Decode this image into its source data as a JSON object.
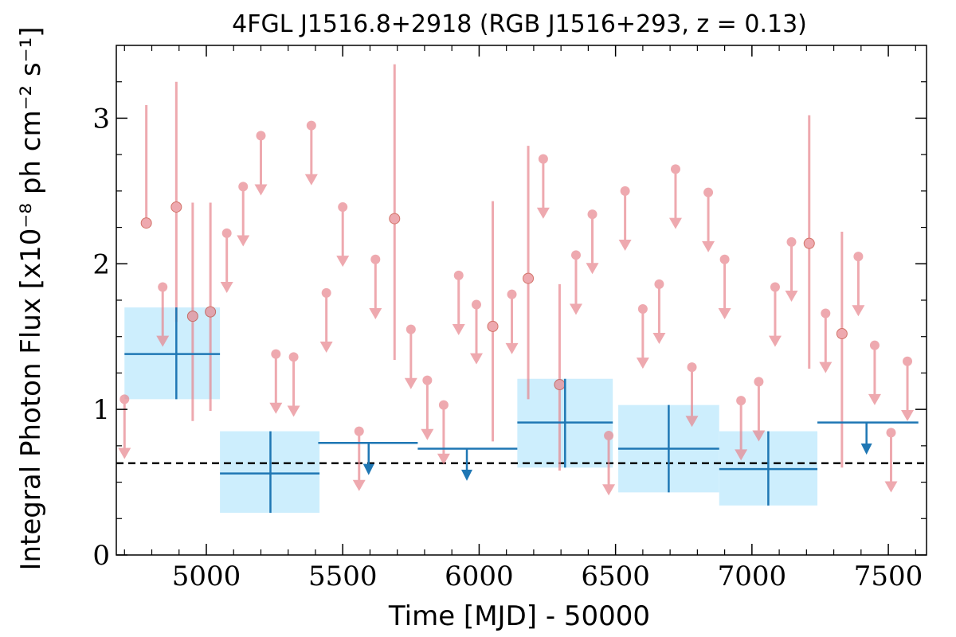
{
  "chart_data": {
    "type": "scatter",
    "title": "4FGL J1516.8+2918 (RGB J1516+293, z = 0.13)",
    "xlabel": "Time [MJD] - 50000",
    "ylabel": "Integral Photon Flux [x10⁻⁸ ph cm⁻² s⁻¹]",
    "xlim": [
      4670,
      7640
    ],
    "ylim": [
      0,
      3.5
    ],
    "x_ticks": [
      5000,
      5500,
      6000,
      6500,
      7000,
      7500
    ],
    "y_ticks": [
      0,
      1,
      2,
      3
    ],
    "x_tick_labels": [
      "5000",
      "5500",
      "6000",
      "6500",
      "7000",
      "7500"
    ],
    "y_tick_labels": [
      "0",
      "1",
      "2",
      "3"
    ],
    "grid": false,
    "legend": "none",
    "reference_line": {
      "y": 0.63,
      "style": "dashed",
      "color": "#000000"
    },
    "colors": {
      "short_bins": "#e8868e",
      "long_bins": "#1f77b4",
      "long_bins_band": "#cdeefd"
    },
    "short_bins_detections": [
      {
        "x": 4780,
        "y": 2.28,
        "yerr_low": 2.28,
        "yerr_high": 3.09
      },
      {
        "x": 4890,
        "y": 2.39,
        "yerr_low": 1.6,
        "yerr_high": 3.25
      },
      {
        "x": 4950,
        "y": 1.64,
        "yerr_low": 0.92,
        "yerr_high": 2.42
      },
      {
        "x": 5015,
        "y": 1.67,
        "yerr_low": 0.99,
        "yerr_high": 2.42
      },
      {
        "x": 5690,
        "y": 2.31,
        "yerr_low": 1.34,
        "yerr_high": 3.37
      },
      {
        "x": 6050,
        "y": 1.57,
        "yerr_low": 0.78,
        "yerr_high": 2.43
      },
      {
        "x": 6180,
        "y": 1.9,
        "yerr_low": 1.07,
        "yerr_high": 2.81
      },
      {
        "x": 6295,
        "y": 1.17,
        "yerr_low": 0.58,
        "yerr_high": 1.86
      },
      {
        "x": 7210,
        "y": 2.14,
        "yerr_low": 1.28,
        "yerr_high": 3.02
      },
      {
        "x": 7330,
        "y": 1.52,
        "yerr_low": 0.6,
        "yerr_high": 2.22
      }
    ],
    "short_bins_upper_limits": [
      {
        "x": 4700,
        "y": 1.07,
        "arrow_to": 0.67
      },
      {
        "x": 4840,
        "y": 1.84,
        "arrow_to": 1.44
      },
      {
        "x": 5075,
        "y": 2.21,
        "arrow_to": 1.81
      },
      {
        "x": 5135,
        "y": 2.53,
        "arrow_to": 2.13
      },
      {
        "x": 5200,
        "y": 2.88,
        "arrow_to": 2.48
      },
      {
        "x": 5255,
        "y": 1.38,
        "arrow_to": 0.98
      },
      {
        "x": 5320,
        "y": 1.36,
        "arrow_to": 0.96
      },
      {
        "x": 5385,
        "y": 2.95,
        "arrow_to": 2.55
      },
      {
        "x": 5440,
        "y": 1.8,
        "arrow_to": 1.4
      },
      {
        "x": 5500,
        "y": 2.39,
        "arrow_to": 1.99
      },
      {
        "x": 5560,
        "y": 0.85,
        "arrow_to": 0.45
      },
      {
        "x": 5620,
        "y": 2.03,
        "arrow_to": 1.63
      },
      {
        "x": 5750,
        "y": 1.55,
        "arrow_to": 1.15
      },
      {
        "x": 5810,
        "y": 1.2,
        "arrow_to": 0.8
      },
      {
        "x": 5870,
        "y": 1.03,
        "arrow_to": 0.63
      },
      {
        "x": 5925,
        "y": 1.92,
        "arrow_to": 1.52
      },
      {
        "x": 5990,
        "y": 1.72,
        "arrow_to": 1.32
      },
      {
        "x": 6120,
        "y": 1.79,
        "arrow_to": 1.39
      },
      {
        "x": 6235,
        "y": 2.72,
        "arrow_to": 2.32
      },
      {
        "x": 6355,
        "y": 2.06,
        "arrow_to": 1.66
      },
      {
        "x": 6415,
        "y": 2.34,
        "arrow_to": 1.94
      },
      {
        "x": 6475,
        "y": 0.82,
        "arrow_to": 0.42
      },
      {
        "x": 6535,
        "y": 2.5,
        "arrow_to": 2.1
      },
      {
        "x": 6600,
        "y": 1.69,
        "arrow_to": 1.29
      },
      {
        "x": 6660,
        "y": 1.86,
        "arrow_to": 1.46
      },
      {
        "x": 6720,
        "y": 2.65,
        "arrow_to": 2.25
      },
      {
        "x": 6780,
        "y": 1.29,
        "arrow_to": 0.89
      },
      {
        "x": 6840,
        "y": 2.49,
        "arrow_to": 2.09
      },
      {
        "x": 6900,
        "y": 2.03,
        "arrow_to": 1.63
      },
      {
        "x": 6960,
        "y": 1.06,
        "arrow_to": 0.66
      },
      {
        "x": 7025,
        "y": 1.19,
        "arrow_to": 0.79
      },
      {
        "x": 7085,
        "y": 1.84,
        "arrow_to": 1.44
      },
      {
        "x": 7145,
        "y": 2.15,
        "arrow_to": 1.75
      },
      {
        "x": 7270,
        "y": 1.66,
        "arrow_to": 1.26
      },
      {
        "x": 7390,
        "y": 2.05,
        "arrow_to": 1.65
      },
      {
        "x": 7450,
        "y": 1.44,
        "arrow_to": 1.04
      },
      {
        "x": 7510,
        "y": 0.84,
        "arrow_to": 0.44
      },
      {
        "x": 7570,
        "y": 1.33,
        "arrow_to": 0.93
      }
    ],
    "long_bins_detections": [
      {
        "x_start": 4700,
        "x_end": 5050,
        "x_center": 4890,
        "y": 1.38,
        "yerr_low": 1.07,
        "yerr_high": 1.7
      },
      {
        "x_start": 5050,
        "x_end": 5415,
        "x_center": 5235,
        "y": 0.56,
        "yerr_low": 0.29,
        "yerr_high": 0.85
      },
      {
        "x_start": 6140,
        "x_end": 6490,
        "x_center": 6315,
        "y": 0.91,
        "yerr_low": 0.6,
        "yerr_high": 1.21
      },
      {
        "x_start": 6510,
        "x_end": 6880,
        "x_center": 6695,
        "y": 0.73,
        "yerr_low": 0.43,
        "yerr_high": 1.03
      },
      {
        "x_start": 6880,
        "x_end": 7240,
        "x_center": 7060,
        "y": 0.59,
        "yerr_low": 0.34,
        "yerr_high": 0.85
      }
    ],
    "long_bins_upper_limits": [
      {
        "x_start": 5410,
        "x_end": 5775,
        "x_center": 5595,
        "y": 0.77,
        "arrow_to": 0.56
      },
      {
        "x_start": 5775,
        "x_end": 6140,
        "x_center": 5955,
        "y": 0.73,
        "arrow_to": 0.52
      },
      {
        "x_start": 7240,
        "x_end": 7610,
        "x_center": 7420,
        "y": 0.91,
        "arrow_to": 0.7
      }
    ]
  }
}
